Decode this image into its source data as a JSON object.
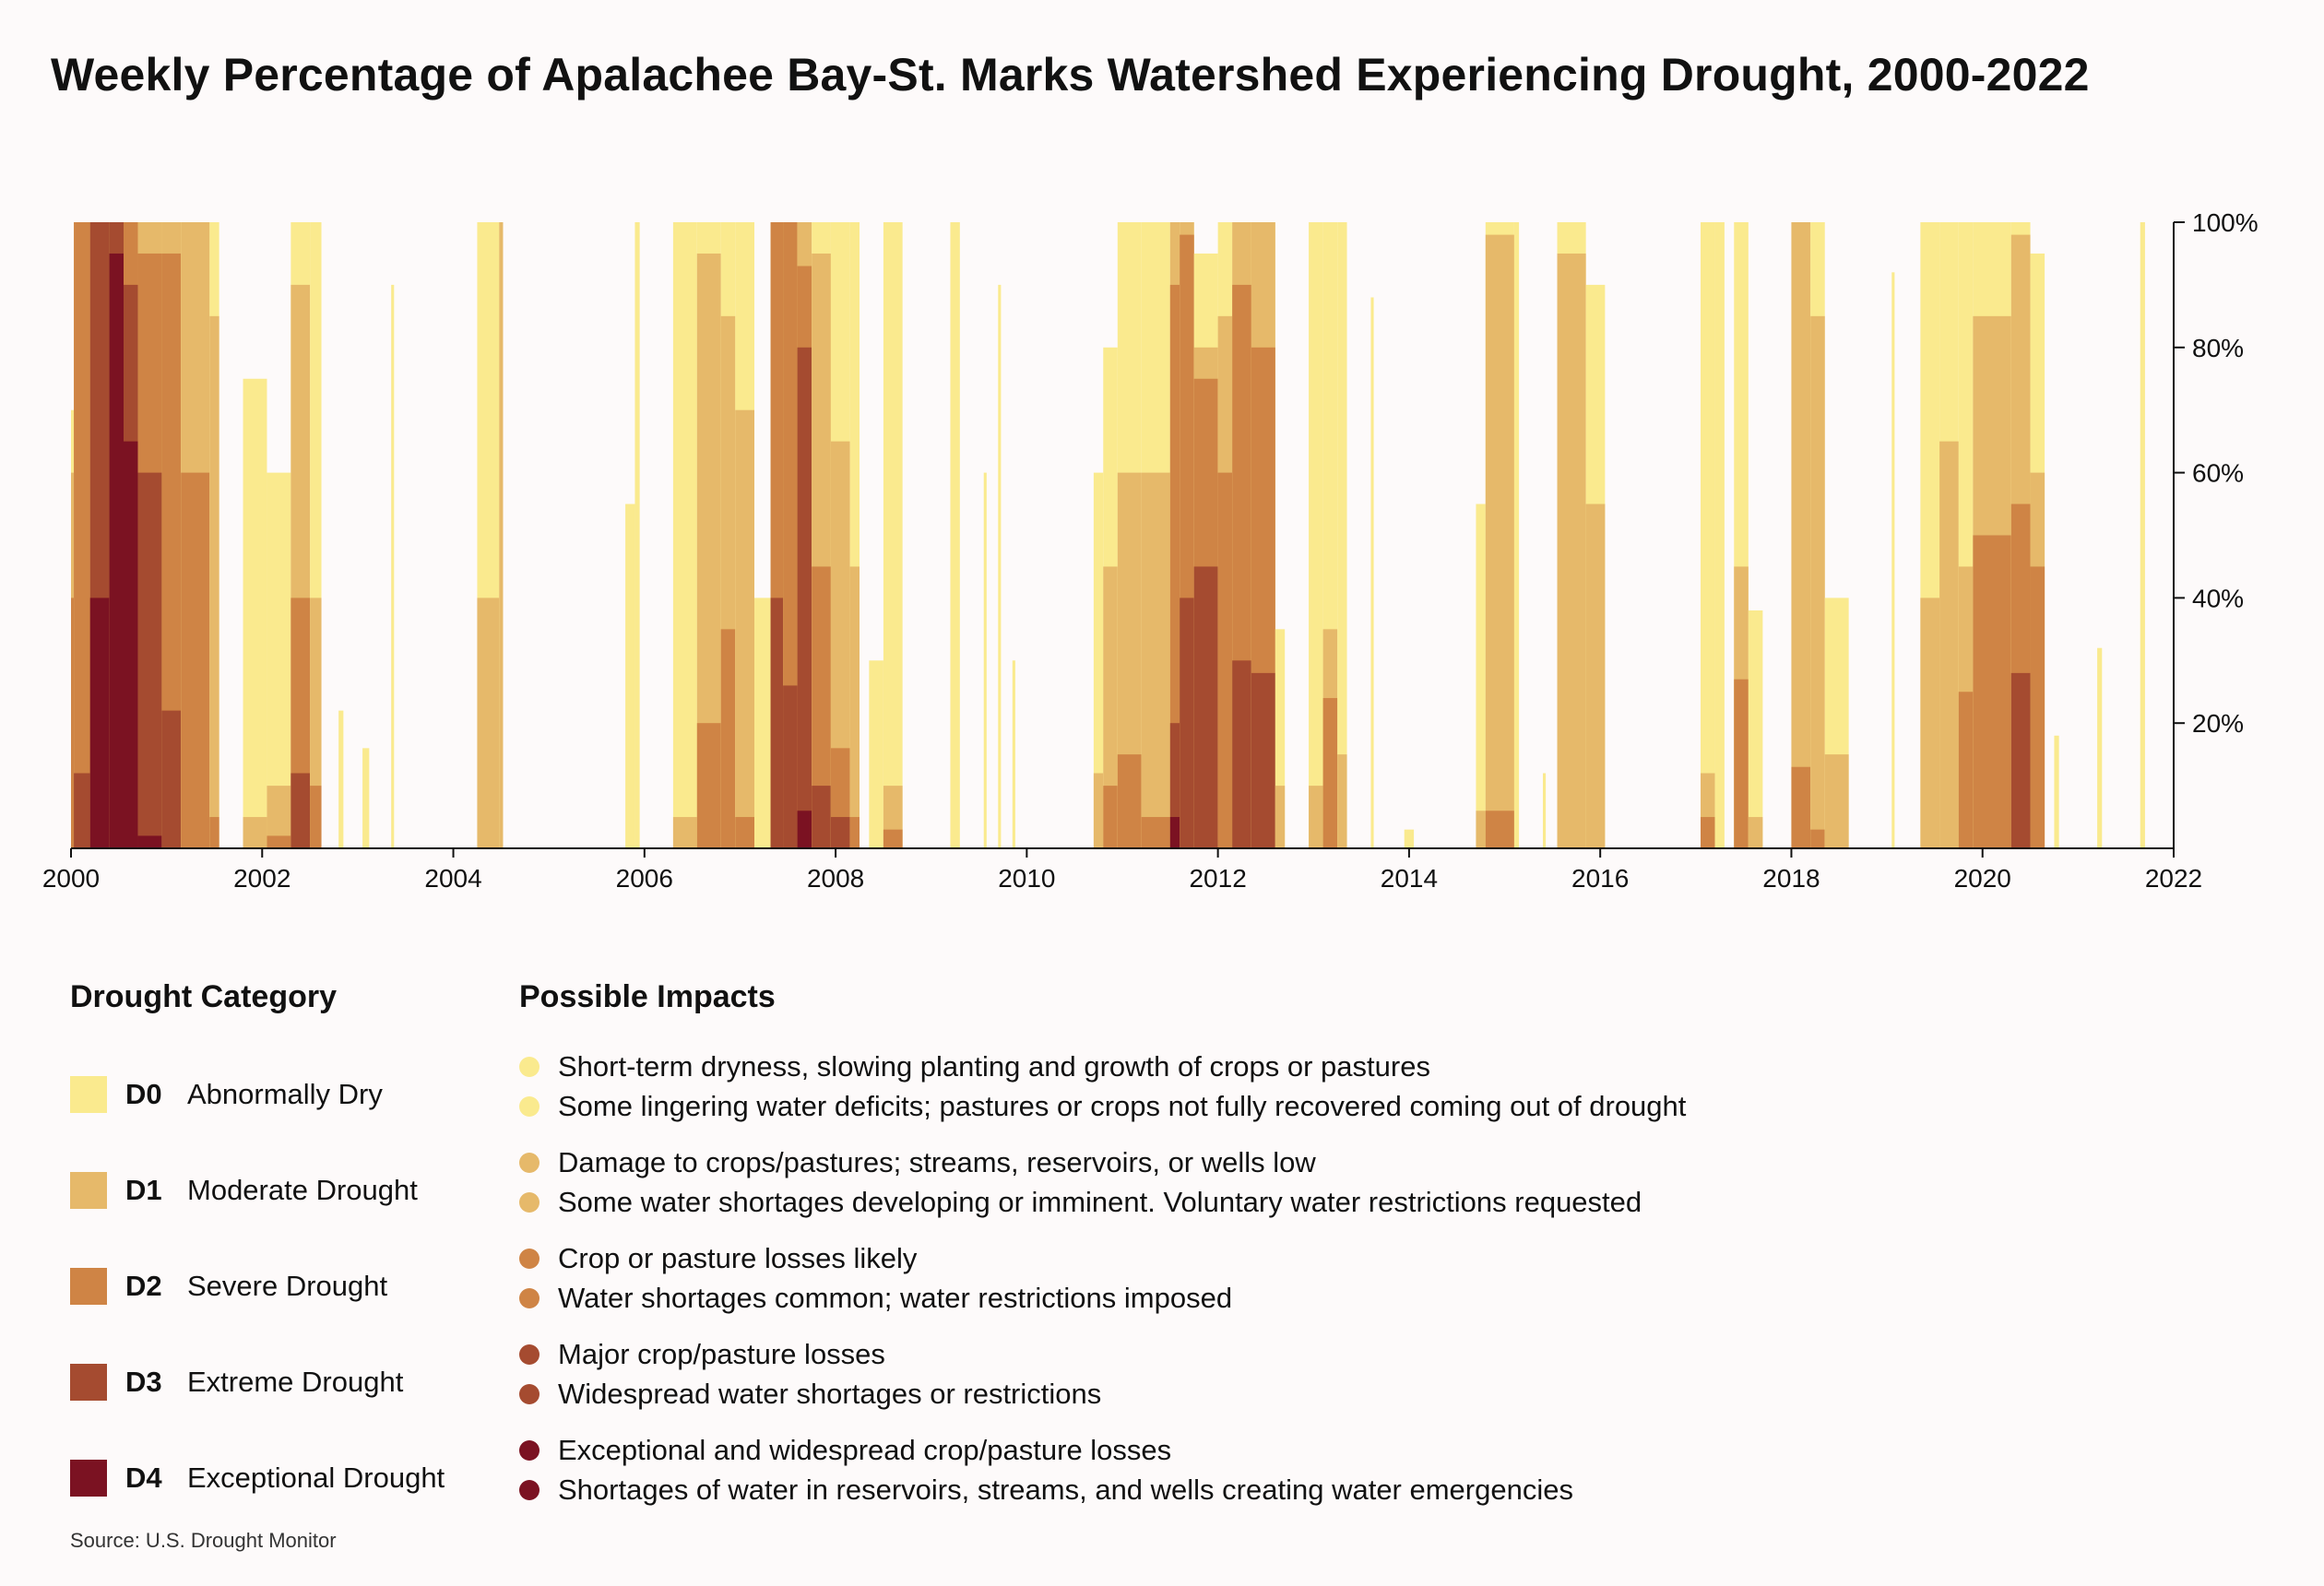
{
  "chart_data": {
    "type": "area",
    "title": "Weekly Percentage of Apalachee Bay-St. Marks Watershed Experiencing Drought, 2000-2022",
    "xlabel": "",
    "ylabel": "",
    "xlim": [
      2000,
      2022
    ],
    "ylim": [
      0,
      100
    ],
    "x_ticks": [
      "2000",
      "2002",
      "2004",
      "2006",
      "2008",
      "2010",
      "2012",
      "2014",
      "2016",
      "2018",
      "2020",
      "2022"
    ],
    "y_ticks": [
      "20%",
      "40%",
      "60%",
      "80%",
      "100%"
    ],
    "series_order": [
      "D0",
      "D1",
      "D2",
      "D3",
      "D4"
    ],
    "episodes": [
      {
        "start": 2000.0,
        "end": 2000.03,
        "levels": [
          70,
          60,
          40,
          0,
          0
        ]
      },
      {
        "start": 2000.03,
        "end": 2000.2,
        "levels": [
          100,
          100,
          100,
          12,
          0
        ]
      },
      {
        "start": 2000.2,
        "end": 2000.4,
        "levels": [
          100,
          100,
          100,
          100,
          40
        ]
      },
      {
        "start": 2000.4,
        "end": 2000.55,
        "levels": [
          100,
          100,
          100,
          100,
          95
        ]
      },
      {
        "start": 2000.55,
        "end": 2000.7,
        "levels": [
          100,
          100,
          100,
          90,
          65
        ]
      },
      {
        "start": 2000.7,
        "end": 2000.95,
        "levels": [
          100,
          100,
          95,
          60,
          2
        ]
      },
      {
        "start": 2000.95,
        "end": 2001.15,
        "levels": [
          100,
          100,
          95,
          22,
          0
        ]
      },
      {
        "start": 2001.15,
        "end": 2001.45,
        "levels": [
          100,
          100,
          60,
          0,
          0
        ]
      },
      {
        "start": 2001.45,
        "end": 2001.55,
        "levels": [
          100,
          85,
          5,
          0,
          0
        ]
      },
      {
        "start": 2001.8,
        "end": 2002.05,
        "levels": [
          75,
          5,
          0,
          0,
          0
        ]
      },
      {
        "start": 2002.05,
        "end": 2002.3,
        "levels": [
          60,
          10,
          2,
          0,
          0
        ]
      },
      {
        "start": 2002.3,
        "end": 2002.5,
        "levels": [
          100,
          90,
          40,
          12,
          0
        ]
      },
      {
        "start": 2002.5,
        "end": 2002.62,
        "levels": [
          100,
          40,
          10,
          0,
          0
        ]
      },
      {
        "start": 2002.8,
        "end": 2002.85,
        "levels": [
          22,
          0,
          0,
          0,
          0
        ]
      },
      {
        "start": 2003.05,
        "end": 2003.12,
        "levels": [
          16,
          0,
          0,
          0,
          0
        ]
      },
      {
        "start": 2003.35,
        "end": 2003.38,
        "levels": [
          90,
          0,
          0,
          0,
          0
        ]
      },
      {
        "start": 2004.25,
        "end": 2004.48,
        "levels": [
          100,
          40,
          0,
          0,
          0
        ]
      },
      {
        "start": 2004.48,
        "end": 2004.52,
        "levels": [
          100,
          100,
          0,
          0,
          0
        ]
      },
      {
        "start": 2005.8,
        "end": 2005.9,
        "levels": [
          55,
          0,
          0,
          0,
          0
        ]
      },
      {
        "start": 2005.9,
        "end": 2005.95,
        "levels": [
          100,
          0,
          0,
          0,
          0
        ]
      },
      {
        "start": 2006.3,
        "end": 2006.55,
        "levels": [
          100,
          5,
          0,
          0,
          0
        ]
      },
      {
        "start": 2006.55,
        "end": 2006.8,
        "levels": [
          100,
          95,
          20,
          0,
          0
        ]
      },
      {
        "start": 2006.8,
        "end": 2006.95,
        "levels": [
          100,
          85,
          35,
          0,
          0
        ]
      },
      {
        "start": 2006.95,
        "end": 2007.15,
        "levels": [
          100,
          70,
          5,
          0,
          0
        ]
      },
      {
        "start": 2007.15,
        "end": 2007.32,
        "levels": [
          40,
          0,
          0,
          0,
          0
        ]
      },
      {
        "start": 2007.32,
        "end": 2007.45,
        "levels": [
          100,
          100,
          100,
          40,
          0
        ]
      },
      {
        "start": 2007.45,
        "end": 2007.6,
        "levels": [
          100,
          100,
          100,
          26,
          0
        ]
      },
      {
        "start": 2007.6,
        "end": 2007.75,
        "levels": [
          100,
          100,
          93,
          80,
          6
        ]
      },
      {
        "start": 2007.75,
        "end": 2007.95,
        "levels": [
          100,
          95,
          45,
          10,
          0
        ]
      },
      {
        "start": 2007.95,
        "end": 2008.15,
        "levels": [
          100,
          65,
          16,
          5,
          0
        ]
      },
      {
        "start": 2008.15,
        "end": 2008.25,
        "levels": [
          100,
          45,
          5,
          0,
          0
        ]
      },
      {
        "start": 2008.35,
        "end": 2008.5,
        "levels": [
          30,
          0,
          0,
          0,
          0
        ]
      },
      {
        "start": 2008.5,
        "end": 2008.7,
        "levels": [
          100,
          10,
          3,
          0,
          0
        ]
      },
      {
        "start": 2009.2,
        "end": 2009.3,
        "levels": [
          100,
          0,
          0,
          0,
          0
        ]
      },
      {
        "start": 2009.55,
        "end": 2009.58,
        "levels": [
          60,
          0,
          0,
          0,
          0
        ]
      },
      {
        "start": 2009.7,
        "end": 2009.73,
        "levels": [
          90,
          0,
          0,
          0,
          0
        ]
      },
      {
        "start": 2009.85,
        "end": 2009.88,
        "levels": [
          30,
          0,
          0,
          0,
          0
        ]
      },
      {
        "start": 2010.7,
        "end": 2010.8,
        "levels": [
          60,
          12,
          0,
          0,
          0
        ]
      },
      {
        "start": 2010.8,
        "end": 2010.95,
        "levels": [
          80,
          45,
          10,
          0,
          0
        ]
      },
      {
        "start": 2010.95,
        "end": 2011.2,
        "levels": [
          100,
          60,
          15,
          0,
          0
        ]
      },
      {
        "start": 2011.2,
        "end": 2011.5,
        "levels": [
          100,
          60,
          5,
          0,
          0
        ]
      },
      {
        "start": 2011.5,
        "end": 2011.6,
        "levels": [
          100,
          100,
          90,
          20,
          5
        ]
      },
      {
        "start": 2011.6,
        "end": 2011.75,
        "levels": [
          100,
          100,
          98,
          40,
          0
        ]
      },
      {
        "start": 2011.75,
        "end": 2012.0,
        "levels": [
          95,
          80,
          75,
          45,
          0
        ]
      },
      {
        "start": 2012.0,
        "end": 2012.15,
        "levels": [
          100,
          85,
          60,
          0,
          0
        ]
      },
      {
        "start": 2012.15,
        "end": 2012.35,
        "levels": [
          100,
          100,
          90,
          30,
          0
        ]
      },
      {
        "start": 2012.35,
        "end": 2012.6,
        "levels": [
          100,
          100,
          80,
          28,
          0
        ]
      },
      {
        "start": 2012.6,
        "end": 2012.7,
        "levels": [
          35,
          10,
          0,
          0,
          0
        ]
      },
      {
        "start": 2012.95,
        "end": 2013.1,
        "levels": [
          100,
          10,
          0,
          0,
          0
        ]
      },
      {
        "start": 2013.1,
        "end": 2013.25,
        "levels": [
          100,
          35,
          24,
          0,
          0
        ]
      },
      {
        "start": 2013.25,
        "end": 2013.35,
        "levels": [
          100,
          15,
          0,
          0,
          0
        ]
      },
      {
        "start": 2013.6,
        "end": 2013.63,
        "levels": [
          88,
          0,
          0,
          0,
          0
        ]
      },
      {
        "start": 2013.95,
        "end": 2014.05,
        "levels": [
          3,
          0,
          0,
          0,
          0
        ]
      },
      {
        "start": 2014.7,
        "end": 2014.8,
        "levels": [
          55,
          6,
          0,
          0,
          0
        ]
      },
      {
        "start": 2014.8,
        "end": 2015.1,
        "levels": [
          100,
          98,
          6,
          0,
          0
        ]
      },
      {
        "start": 2015.1,
        "end": 2015.15,
        "levels": [
          100,
          0,
          0,
          0,
          0
        ]
      },
      {
        "start": 2015.4,
        "end": 2015.43,
        "levels": [
          12,
          0,
          0,
          0,
          0
        ]
      },
      {
        "start": 2015.55,
        "end": 2015.85,
        "levels": [
          100,
          95,
          0,
          0,
          0
        ]
      },
      {
        "start": 2015.85,
        "end": 2016.05,
        "levels": [
          90,
          55,
          0,
          0,
          0
        ]
      },
      {
        "start": 2017.05,
        "end": 2017.2,
        "levels": [
          100,
          12,
          5,
          0,
          0
        ]
      },
      {
        "start": 2017.2,
        "end": 2017.3,
        "levels": [
          100,
          0,
          0,
          0,
          0
        ]
      },
      {
        "start": 2017.4,
        "end": 2017.55,
        "levels": [
          100,
          45,
          27,
          0,
          0
        ]
      },
      {
        "start": 2017.55,
        "end": 2017.7,
        "levels": [
          38,
          5,
          0,
          0,
          0
        ]
      },
      {
        "start": 2018.0,
        "end": 2018.2,
        "levels": [
          100,
          100,
          13,
          0,
          0
        ]
      },
      {
        "start": 2018.2,
        "end": 2018.35,
        "levels": [
          100,
          85,
          3,
          0,
          0
        ]
      },
      {
        "start": 2018.35,
        "end": 2018.6,
        "levels": [
          40,
          15,
          0,
          0,
          0
        ]
      },
      {
        "start": 2019.05,
        "end": 2019.08,
        "levels": [
          92,
          0,
          0,
          0,
          0
        ]
      },
      {
        "start": 2019.35,
        "end": 2019.55,
        "levels": [
          100,
          40,
          0,
          0,
          0
        ]
      },
      {
        "start": 2019.55,
        "end": 2019.75,
        "levels": [
          100,
          65,
          0,
          0,
          0
        ]
      },
      {
        "start": 2019.75,
        "end": 2019.9,
        "levels": [
          100,
          45,
          25,
          0,
          0
        ]
      },
      {
        "start": 2019.9,
        "end": 2020.3,
        "levels": [
          100,
          85,
          50,
          0,
          0
        ]
      },
      {
        "start": 2020.3,
        "end": 2020.5,
        "levels": [
          100,
          98,
          55,
          28,
          0
        ]
      },
      {
        "start": 2020.5,
        "end": 2020.65,
        "levels": [
          95,
          60,
          45,
          0,
          0
        ]
      },
      {
        "start": 2020.75,
        "end": 2020.8,
        "levels": [
          18,
          0,
          0,
          0,
          0
        ]
      },
      {
        "start": 2021.2,
        "end": 2021.25,
        "levels": [
          32,
          0,
          0,
          0,
          0
        ]
      },
      {
        "start": 2021.65,
        "end": 2021.7,
        "levels": [
          100,
          0,
          0,
          0,
          0
        ]
      }
    ]
  },
  "legend": {
    "categories_heading": "Drought Category",
    "impacts_heading": "Possible Impacts",
    "categories": [
      {
        "code": "D0",
        "label": "Abnormally Dry",
        "color": "#faea8e",
        "impacts": [
          "Short-term dryness, slowing planting and growth of crops or pastures",
          "Some lingering water deficits; pastures or crops not fully recovered coming out of drought"
        ]
      },
      {
        "code": "D1",
        "label": "Moderate Drought",
        "color": "#e6b96a",
        "impacts": [
          "Damage to crops/pastures; streams, reservoirs, or wells low",
          "Some water shortages developing or imminent. Voluntary water restrictions requested"
        ]
      },
      {
        "code": "D2",
        "label": "Severe Drought",
        "color": "#cf8445",
        "impacts": [
          "Crop or pasture losses likely",
          "Water shortages common; water restrictions imposed"
        ]
      },
      {
        "code": "D3",
        "label": "Extreme Drought",
        "color": "#a54b30",
        "impacts": [
          "Major crop/pasture losses",
          "Widespread water shortages or restrictions"
        ]
      },
      {
        "code": "D4",
        "label": "Exceptional Drought",
        "color": "#7b1222",
        "impacts": [
          "Exceptional and widespread crop/pasture losses",
          "Shortages of water in reservoirs, streams, and wells creating water emergencies"
        ]
      }
    ]
  },
  "source": "Source: U.S. Drought Monitor"
}
